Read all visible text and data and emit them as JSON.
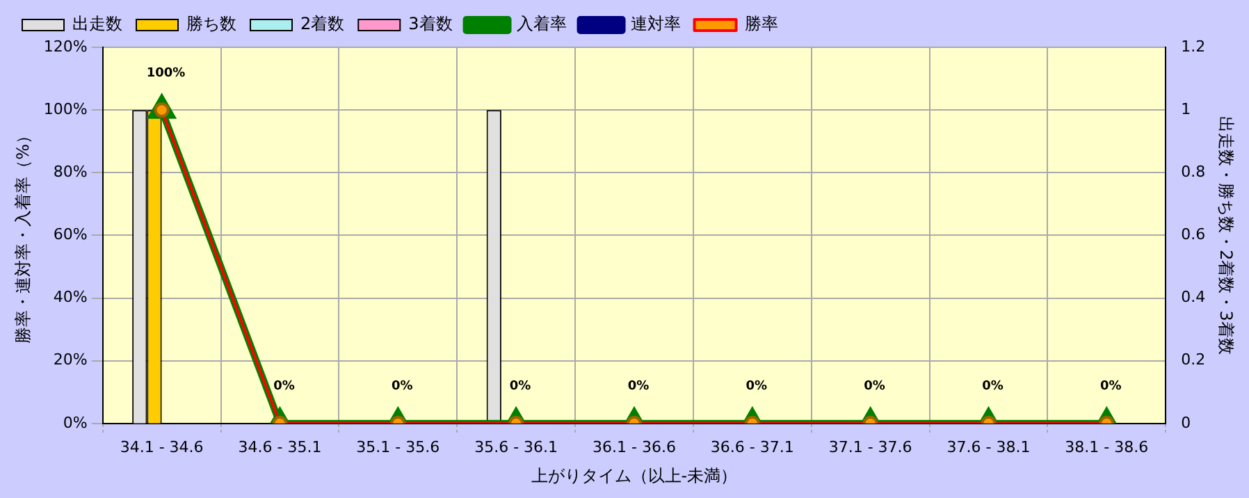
{
  "chart_data": {
    "type": "bar",
    "categories": [
      "34.1 - 34.6",
      "34.6 - 35.1",
      "35.1 - 35.6",
      "35.6 - 36.1",
      "36.1 - 36.6",
      "36.6 - 37.1",
      "37.1 - 37.6",
      "37.6 - 38.1",
      "38.1 - 38.6"
    ],
    "series": [
      {
        "name": "出走数",
        "axis": "y2",
        "color": "#e0e0e0",
        "values": [
          1,
          0,
          0,
          1,
          0,
          0,
          0,
          0,
          0
        ]
      },
      {
        "name": "勝ち数",
        "axis": "y2",
        "color": "#ffcc00",
        "values": [
          1,
          0,
          0,
          0,
          0,
          0,
          0,
          0,
          0
        ]
      },
      {
        "name": "2着数",
        "axis": "y2",
        "color": "#aaeeee",
        "values": [
          0,
          0,
          0,
          0,
          0,
          0,
          0,
          0,
          0
        ]
      },
      {
        "name": "3着数",
        "axis": "y2",
        "color": "#ff99cc",
        "values": [
          0,
          0,
          0,
          0,
          0,
          0,
          0,
          0,
          0
        ]
      },
      {
        "name": "入着率",
        "type": "line",
        "marker": "triangle",
        "color": "#008000",
        "values": [
          100,
          0,
          0,
          0,
          0,
          0,
          0,
          0,
          0
        ]
      },
      {
        "name": "連対率",
        "type": "line",
        "marker": "diamond",
        "color": "#000080",
        "values": [
          null,
          null,
          null,
          null,
          null,
          null,
          null,
          null,
          null
        ]
      },
      {
        "name": "勝率",
        "type": "line",
        "marker": "circle",
        "color": "#ff0000",
        "values": [
          100,
          0,
          0,
          0,
          0,
          0,
          0,
          0,
          0
        ],
        "value_labels": [
          "100%",
          "0%",
          "0%",
          "0%",
          "0%",
          "0%",
          "0%",
          "0%",
          "0%"
        ]
      }
    ],
    "xlabel": "上がりタイム（以上-未満）",
    "ylabel": "勝率・連対率・入着率（%）",
    "y2label": "出走数・勝ち数・2着数・3着数",
    "ylim": [
      0,
      120
    ],
    "yticks": [
      {
        "value": 0,
        "label": "0%"
      },
      {
        "value": 20,
        "label": "20%"
      },
      {
        "value": 40,
        "label": "40%"
      },
      {
        "value": 60,
        "label": "60%"
      },
      {
        "value": 80,
        "label": "80%"
      },
      {
        "value": 100,
        "label": "100%"
      },
      {
        "value": 120,
        "label": "120%"
      }
    ],
    "y2lim": [
      0,
      1.2
    ],
    "y2ticks": [
      0,
      0.2,
      0.4,
      0.6,
      0.8,
      1,
      1.2
    ],
    "grid": true,
    "legend": "top left",
    "line_style": "solid"
  }
}
